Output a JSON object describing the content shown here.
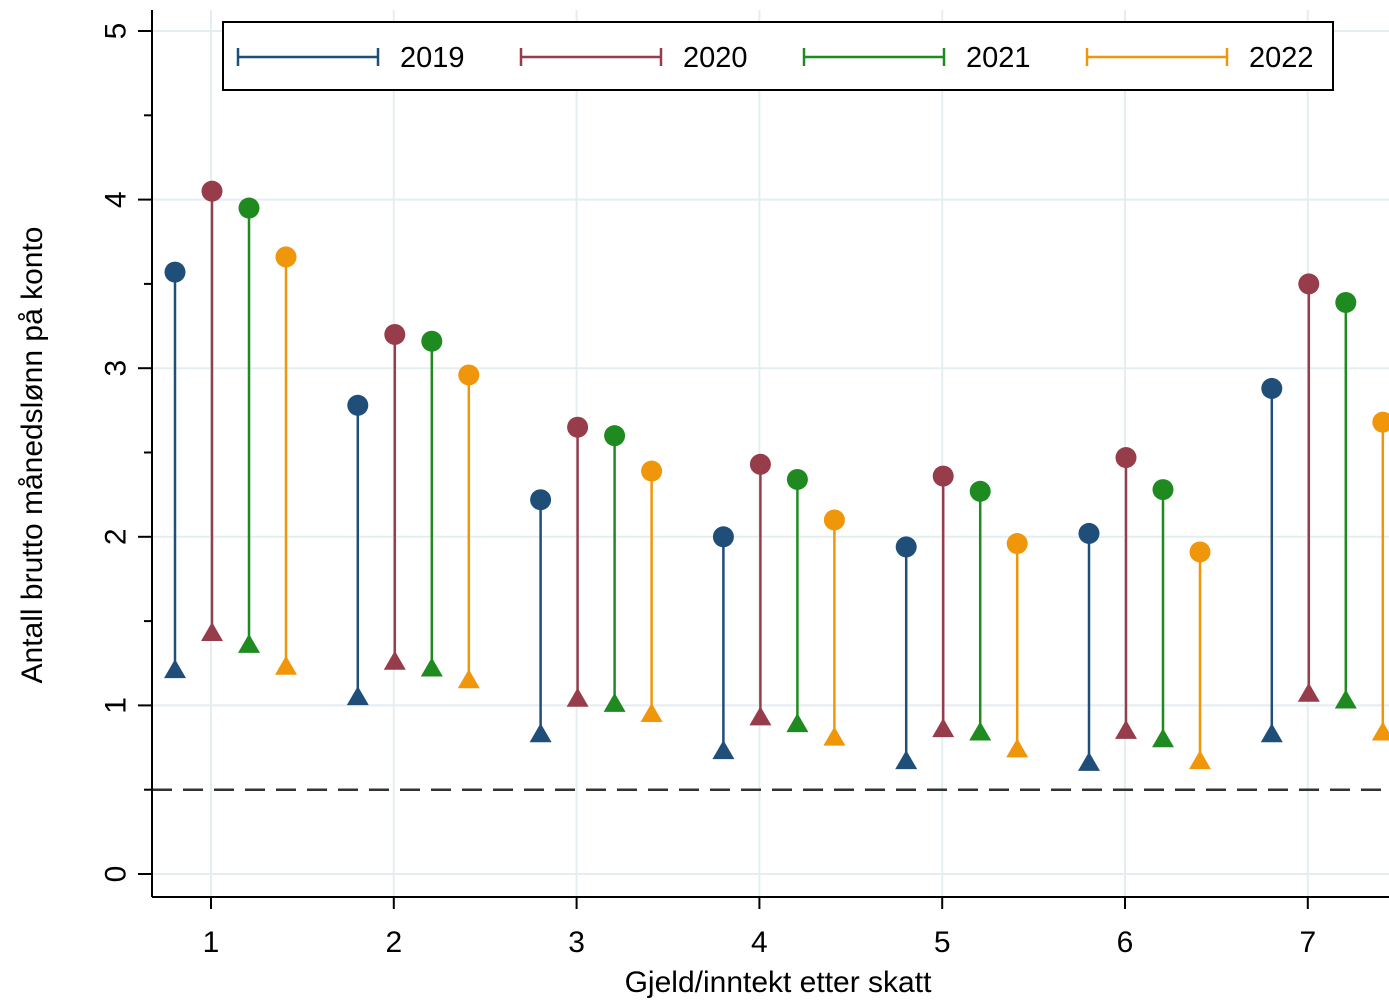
{
  "chart_data": {
    "type": "line",
    "chart_subtype": "range-plot",
    "xlabel": "Gjeld/inntekt etter skatt",
    "ylabel": "Antall brutto månedslønn på konto",
    "categories": [
      "1",
      "2",
      "3",
      "4",
      "5",
      "6",
      "7"
    ],
    "ylim": [
      0,
      5
    ],
    "yticks": [
      0,
      1,
      2,
      3,
      4,
      5
    ],
    "grid": true,
    "reference_line": {
      "y": 0.5,
      "style": "dashed"
    },
    "legend": {
      "position": "top",
      "entries": [
        "2019",
        "2020",
        "2021",
        "2022"
      ]
    },
    "markers": {
      "low": "triangle",
      "high": "circle"
    },
    "series": [
      {
        "name": "2019",
        "color": "#1f4e79",
        "low": [
          1.2,
          1.04,
          0.82,
          0.72,
          0.66,
          0.65,
          0.82
        ],
        "high": [
          3.57,
          2.78,
          2.22,
          2.0,
          1.94,
          2.02,
          2.88
        ]
      },
      {
        "name": "2020",
        "color": "#963c4b",
        "low": [
          1.42,
          1.25,
          1.03,
          0.92,
          0.85,
          0.84,
          1.06
        ],
        "high": [
          4.05,
          3.2,
          2.65,
          2.43,
          2.36,
          2.47,
          3.5
        ]
      },
      {
        "name": "2021",
        "color": "#1f8a1f",
        "low": [
          1.35,
          1.21,
          1.0,
          0.88,
          0.83,
          0.79,
          1.02
        ],
        "high": [
          3.95,
          3.16,
          2.6,
          2.34,
          2.27,
          2.28,
          3.39
        ]
      },
      {
        "name": "2022",
        "color": "#f0960a",
        "low": [
          1.22,
          1.14,
          0.94,
          0.8,
          0.73,
          0.66,
          0.83
        ],
        "high": [
          3.66,
          2.96,
          2.39,
          2.1,
          1.96,
          1.91,
          2.68
        ]
      }
    ]
  }
}
